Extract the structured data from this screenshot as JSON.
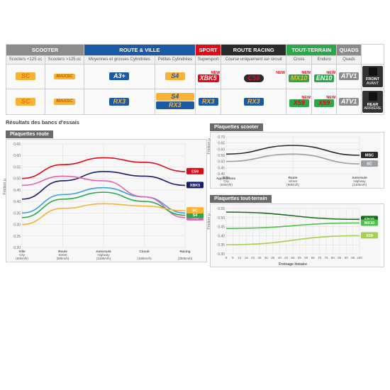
{
  "categories": [
    {
      "name": "SCOOTER",
      "bg": "#8b8b8b",
      "cols": [
        {
          "sub": "Scooters <125 cc"
        },
        {
          "sub": "Scooters >125 cc"
        }
      ]
    },
    {
      "name": "ROUTE & VILLE",
      "bg": "#1b5aa6",
      "cols": [
        {
          "sub": "Moyennes et grosses Cylindrées"
        },
        {
          "sub": "Petites Cylindrées"
        }
      ]
    },
    {
      "name": "SPORT",
      "bg": "#e20a16",
      "cols": [
        {
          "sub": "Supersport"
        }
      ]
    },
    {
      "name": "ROUTE RACING",
      "bg": "#2b2b2b",
      "cols": [
        {
          "sub": "Course uniquement sur circuit"
        }
      ]
    },
    {
      "name": "TOUT-TERRAIN",
      "bg": "#2aa84a",
      "cols": [
        {
          "sub": "Cross"
        },
        {
          "sub": "Enduro"
        }
      ]
    },
    {
      "name": "QUADS",
      "bg": "#8b8b8b",
      "cols": [
        {
          "sub": "Quads"
        }
      ]
    }
  ],
  "side": [
    {
      "label": "FRONT",
      "sub": "AVANT"
    },
    {
      "label": "REAR",
      "sub": "ARRIÈRE"
    }
  ],
  "rows": [
    [
      {
        "t": "SC",
        "bg": "#f9b233",
        "fg": "#d97b00"
      },
      {
        "t": "MAXSC",
        "bg": "#f9b233",
        "fg": "#b86000",
        "small": true
      },
      {
        "t": "A3+",
        "bg": "#1b5aa6",
        "fg": "#fff"
      },
      {
        "t": "S4",
        "bg": "#f9b233",
        "fg": "#1b5aa6"
      },
      {
        "t": "XBK5",
        "bg": "#e20a16",
        "fg": "#fff",
        "new": true
      },
      {
        "t": "C59",
        "bg": "#2b2b2b",
        "fg": "#e20a16",
        "new": true,
        "pill": true
      },
      {
        "t": "MX10",
        "bg": "#2aa84a",
        "fg": "#f9b233",
        "new": true
      },
      {
        "t": "EN10",
        "bg": "#2aa84a",
        "fg": "#fff",
        "new": true
      },
      {
        "t": "ATV1",
        "bg": "#8b8b8b",
        "fg": "#fff"
      }
    ],
    [
      {
        "t": "SC",
        "bg": "#f9b233",
        "fg": "#d97b00"
      },
      {
        "t": "MAXSC",
        "bg": "#f9b233",
        "fg": "#b86000",
        "small": true
      },
      {
        "t": "RX3",
        "bg": "#1b5aa6",
        "fg": "#f9b233"
      },
      {
        "t": "S4 RX3",
        "bg": "#f9b233",
        "fg": "#1b5aa6",
        "stack": true
      },
      {
        "t": "RX3",
        "bg": "#1b5aa6",
        "fg": "#f9b233"
      },
      {
        "t": "RX3",
        "bg": "#1b5aa6",
        "fg": "#f9b233"
      },
      {
        "t": "X59",
        "bg": "#2aa84a",
        "fg": "#e20a16",
        "new": true
      },
      {
        "t": "X59",
        "bg": "#2aa84a",
        "fg": "#e20a16",
        "new": true
      },
      {
        "t": "ATV1",
        "bg": "#8b8b8b",
        "fg": "#fff"
      }
    ]
  ],
  "chart_left": {
    "title": "Résultats des bancs d'essais",
    "subtitle": "Plaquettes route",
    "ylabel": "Friction µ",
    "bg": "#f7f7f7",
    "grid": "#dcdcdc",
    "yrange": [
      0.2,
      0.65
    ],
    "ytick": 0.05,
    "xcats": [
      "Ville City (50km/h)",
      "Route Street (90km/h)",
      "Autoroute Highway (130km/h)",
      "Circuit (180km/h)",
      "Racing (250km/h)"
    ],
    "series": [
      {
        "name": "C59",
        "color": "#e20a16",
        "d": [
          0.5,
          0.56,
          0.59,
          0.57,
          0.53
        ]
      },
      {
        "name": "XBK5",
        "color": "#1b1b6b",
        "d": [
          0.41,
          0.49,
          0.53,
          0.51,
          0.47
        ]
      },
      {
        "name": "A3+",
        "color": "#3aa0dd",
        "d": [
          0.35,
          0.43,
          0.46,
          0.42,
          0.35
        ]
      },
      {
        "name": "RX3",
        "color": "#e85fb0",
        "d": [
          0.47,
          0.51,
          0.49,
          0.42,
          0.33
        ]
      },
      {
        "name": "S4",
        "color": "#2aa84a",
        "d": [
          0.33,
          0.41,
          0.44,
          0.4,
          0.34
        ]
      },
      {
        "name": "SC",
        "color": "#f9b233",
        "d": [
          0.3,
          0.37,
          0.39,
          0.38,
          0.36
        ]
      }
    ]
  },
  "chart_top": {
    "subtitle": "Plaquettes scooter",
    "ylabel": "Friction µ",
    "bg": "#f7f7f7",
    "grid": "#dcdcdc",
    "yrange": [
      0.4,
      0.7
    ],
    "ytick": 0.05,
    "xcats": [
      "Ville City (50km/h)",
      "Route Street (90km/h)",
      "Autoroute Highway (130km/h)"
    ],
    "series": [
      {
        "name": "MSC",
        "color": "#2b2b2b",
        "d": [
          0.56,
          0.63,
          0.55
        ]
      },
      {
        "name": "SC",
        "color": "#9aa0a4",
        "d": [
          0.5,
          0.56,
          0.48
        ]
      }
    ],
    "xlabel": "Applications"
  },
  "chart_bot": {
    "subtitle": "Plaquettes tout-terrain",
    "ylabel": "Friction µ",
    "bg": "#f7f7f7",
    "grid": "#dcdcdc",
    "yrange": [
      0.3,
      0.55
    ],
    "ytick": 0.05,
    "xrange": [
      0,
      100
    ],
    "xtick": 5,
    "xlabel": "Freinage linéaire",
    "series": [
      {
        "name": "EN10",
        "color": "#1a6b1a",
        "d": [
          [
            0,
            0.53
          ],
          [
            100,
            0.49
          ]
        ]
      },
      {
        "name": "MX10",
        "color": "#4cc24c",
        "d": [
          [
            0,
            0.44
          ],
          [
            100,
            0.47
          ]
        ]
      },
      {
        "name": "X59",
        "color": "#a8d050",
        "d": [
          [
            0,
            0.35
          ],
          [
            100,
            0.4
          ]
        ]
      }
    ]
  }
}
